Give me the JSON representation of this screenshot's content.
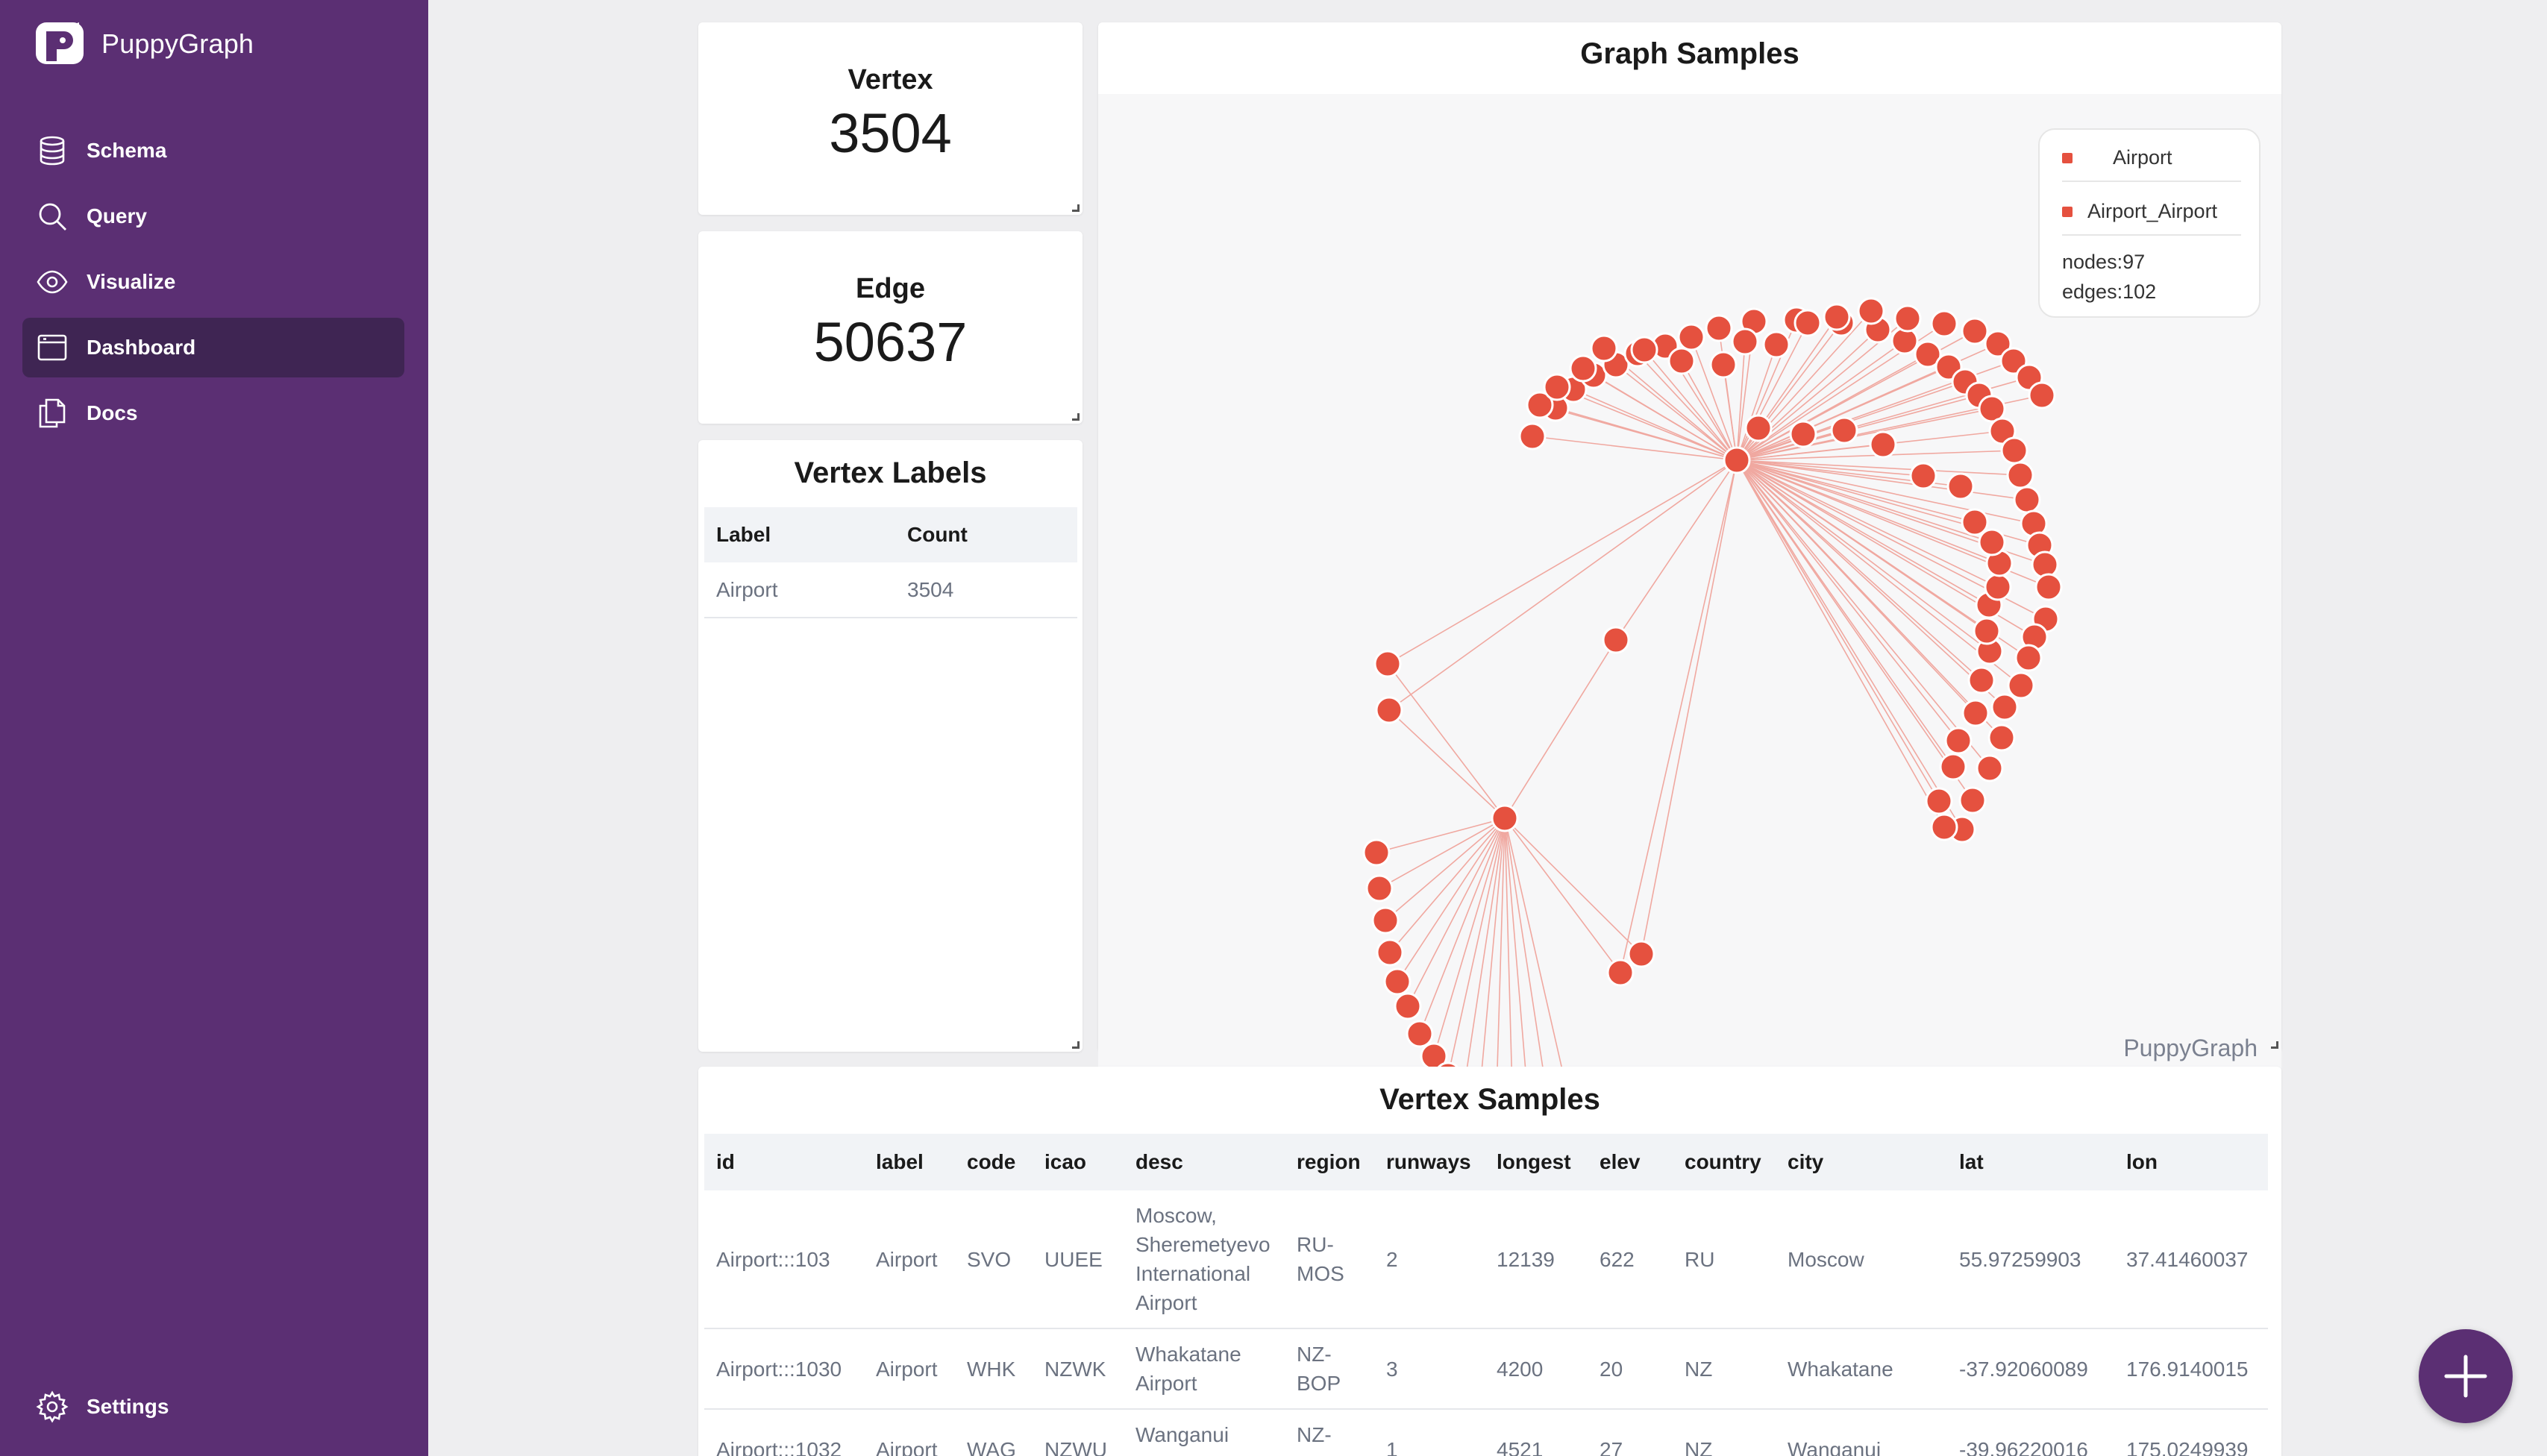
{
  "app": {
    "brand_name": "PuppyGraph"
  },
  "sidebar": {
    "items": [
      {
        "label": "Schema",
        "icon": "database-icon"
      },
      {
        "label": "Query",
        "icon": "search-icon"
      },
      {
        "label": "Visualize",
        "icon": "eye-icon"
      },
      {
        "label": "Dashboard",
        "icon": "dashboard-icon",
        "active": true
      },
      {
        "label": "Docs",
        "icon": "docs-icon"
      }
    ],
    "settings_label": "Settings"
  },
  "stats": {
    "vertex_title": "Vertex",
    "vertex_value": "3504",
    "edge_title": "Edge",
    "edge_value": "50637"
  },
  "vertex_labels": {
    "title": "Vertex Labels",
    "headers": [
      "Label",
      "Count"
    ],
    "rows": [
      [
        "Airport",
        "3504"
      ]
    ]
  },
  "graph": {
    "title": "Graph Samples",
    "legend": [
      "Airport",
      "Airport_Airport"
    ],
    "nodes_text": "nodes:97",
    "edges_text": "edges:102",
    "watermark": "PuppyGraph",
    "node_color": "#e5513f",
    "edge_color": "#f0a8a0"
  },
  "vertex_samples": {
    "title": "Vertex Samples",
    "headers": [
      "id",
      "label",
      "code",
      "icao",
      "desc",
      "region",
      "runways",
      "longest",
      "elev",
      "country",
      "city",
      "lat",
      "lon"
    ],
    "rows": [
      [
        "Airport:::103",
        "Airport",
        "SVO",
        "UUEE",
        "Moscow, Sheremetyevo International Airport",
        "RU-MOS",
        "2",
        "12139",
        "622",
        "RU",
        "Moscow",
        "55.97259903",
        "37.41460037"
      ],
      [
        "Airport:::1030",
        "Airport",
        "WHK",
        "NZWK",
        "Whakatane Airport",
        "NZ-BOP",
        "3",
        "4200",
        "20",
        "NZ",
        "Whakatane",
        "-37.92060089",
        "176.9140015"
      ],
      [
        "Airport:::1032",
        "Airport",
        "WAG",
        "NZWU",
        "Wanganui Airport",
        "NZ-MWT",
        "1",
        "4521",
        "27",
        "NZ",
        "Wanganui",
        "-39.96220016",
        "175.0249939"
      ]
    ]
  },
  "colors": {
    "sidebar": "#5b2f73",
    "sidebar_active": "#3f2553",
    "accent": "#e5513f"
  }
}
